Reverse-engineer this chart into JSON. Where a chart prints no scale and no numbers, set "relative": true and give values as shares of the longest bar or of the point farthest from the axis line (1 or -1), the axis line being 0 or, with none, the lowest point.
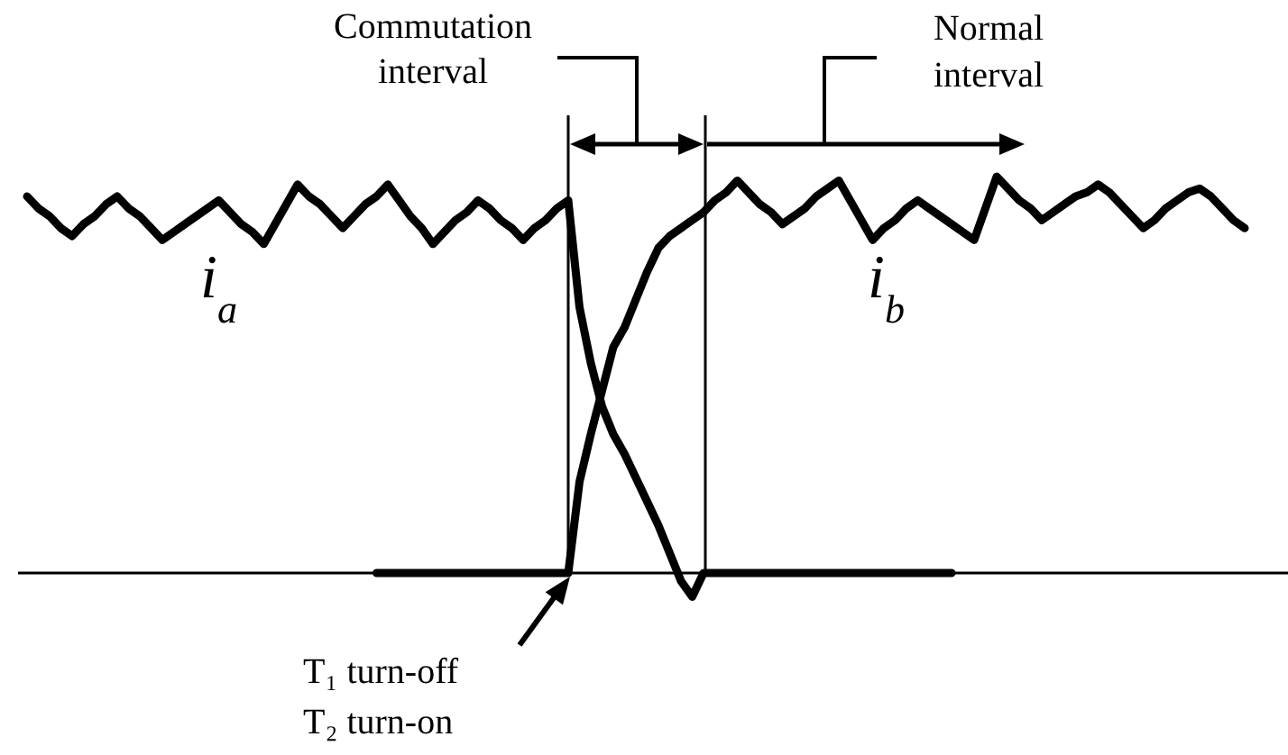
{
  "chart_data": {
    "type": "line",
    "relative": true,
    "categories": [
      null,
      null,
      null,
      null,
      null,
      null,
      null,
      null,
      null,
      null,
      null,
      null,
      null,
      null,
      null,
      null,
      null,
      null,
      null,
      null,
      null,
      null,
      null,
      null,
      null,
      null,
      null,
      null,
      null,
      null,
      null,
      null,
      null,
      null,
      null,
      null,
      null,
      null,
      null,
      null,
      null,
      null,
      null,
      null,
      null,
      null,
      null,
      null,
      null,
      null,
      null,
      null,
      null,
      null,
      null,
      null,
      null,
      null,
      null,
      null,
      null,
      null,
      null,
      null,
      null,
      null,
      null,
      null,
      null,
      null,
      null,
      null,
      null,
      null,
      null,
      null,
      null,
      null,
      null,
      null,
      null,
      null,
      null,
      null,
      null,
      null,
      null,
      null,
      null,
      null,
      null,
      null,
      null,
      null,
      null,
      null,
      null,
      null,
      null,
      null,
      null,
      null,
      null,
      null,
      null,
      null,
      null,
      null,
      null
    ],
    "series": [
      {
        "name": "i$_{a}$",
        "color": "#000000",
        "values": [
          0.95,
          0.92,
          0.9,
          0.87,
          0.85,
          0.88,
          0.9,
          0.93,
          0.95,
          0.92,
          0.9,
          0.87,
          0.84,
          0.86,
          0.88,
          0.9,
          0.92,
          0.94,
          0.91,
          0.88,
          0.86,
          0.83,
          0.88,
          0.93,
          0.98,
          0.95,
          0.93,
          0.9,
          0.87,
          0.9,
          0.93,
          0.95,
          0.98,
          0.94,
          0.9,
          0.87,
          0.83,
          0.86,
          0.89,
          0.91,
          0.94,
          0.92,
          0.89,
          0.87,
          0.84,
          0.87,
          0.89,
          0.92,
          0.94,
          0.67,
          0.53,
          0.42,
          0.35,
          0.3,
          0.24,
          0.18,
          0.12,
          0.05,
          -0.02,
          -0.06,
          0,
          0,
          0,
          0,
          0,
          0,
          0,
          0,
          0,
          0,
          0,
          0,
          0,
          0,
          0,
          0,
          0,
          0,
          0,
          0,
          0,
          0,
          0,
          null,
          null,
          null,
          null,
          null,
          null,
          null,
          null,
          null,
          null,
          null,
          null,
          null,
          null,
          null,
          null,
          null,
          null,
          null,
          null,
          null,
          null,
          null,
          null,
          null,
          null
        ]
      },
      {
        "name": "i$_{b}$",
        "color": "#000000",
        "values": [
          null,
          null,
          null,
          null,
          null,
          null,
          null,
          null,
          null,
          null,
          null,
          null,
          null,
          null,
          null,
          null,
          null,
          null,
          null,
          null,
          null,
          null,
          null,
          null,
          null,
          null,
          null,
          null,
          null,
          null,
          null,
          0,
          0,
          0,
          0,
          0,
          0,
          0,
          0,
          0,
          0,
          0,
          0,
          0,
          0,
          0,
          0,
          0,
          0,
          0.23,
          0.35,
          0.46,
          0.57,
          0.62,
          0.69,
          0.76,
          0.82,
          0.85,
          0.87,
          0.89,
          0.91,
          0.94,
          0.96,
          0.99,
          0.96,
          0.93,
          0.91,
          0.88,
          0.9,
          0.92,
          0.95,
          0.97,
          0.99,
          0.94,
          0.89,
          0.84,
          0.87,
          0.89,
          0.92,
          0.94,
          0.92,
          0.9,
          0.88,
          0.86,
          0.84,
          0.92,
          1,
          0.97,
          0.94,
          0.92,
          0.89,
          0.91,
          0.93,
          0.95,
          0.96,
          0.98,
          0.96,
          0.93,
          0.9,
          0.87,
          0.89,
          0.92,
          0.94,
          0.96,
          0.97,
          0.95,
          0.92,
          0.89,
          0.87
        ]
      }
    ],
    "annotations": [
      "Commutation interval",
      "Normal interval",
      "T₁ turn-off",
      "T₂ turn-on"
    ],
    "marker": "none"
  }
}
